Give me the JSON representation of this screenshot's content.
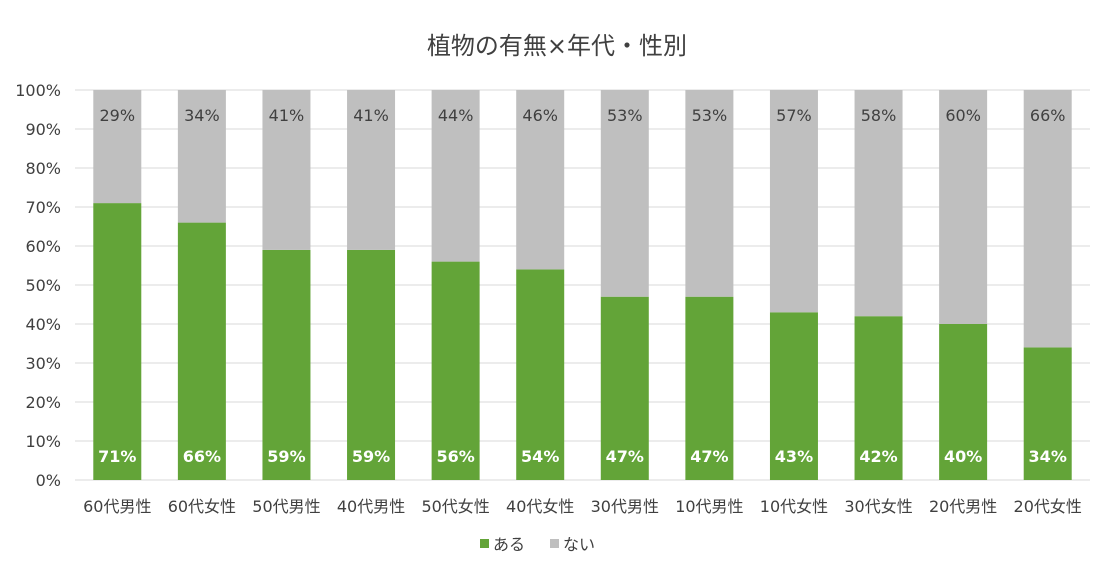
{
  "chart_data": {
    "type": "bar",
    "stacked": true,
    "percent": true,
    "title": "植物の有無×年代・性別",
    "categories": [
      "60代男性",
      "60代女性",
      "50代男性",
      "40代男性",
      "50代女性",
      "40代女性",
      "30代男性",
      "10代男性",
      "10代女性",
      "30代女性",
      "20代男性",
      "20代女性"
    ],
    "series": [
      {
        "name": "ある",
        "color": "#63a438",
        "values": [
          71,
          66,
          59,
          59,
          56,
          54,
          47,
          47,
          43,
          42,
          40,
          34
        ],
        "labels": [
          "71%",
          "66%",
          "59%",
          "59%",
          "56%",
          "54%",
          "47%",
          "47%",
          "43%",
          "42%",
          "40%",
          "34%"
        ]
      },
      {
        "name": "ない",
        "color": "#bfbfbf",
        "values": [
          29,
          34,
          41,
          41,
          44,
          46,
          53,
          53,
          57,
          58,
          60,
          66
        ],
        "labels": [
          "29%",
          "34%",
          "41%",
          "41%",
          "44%",
          "46%",
          "53%",
          "53%",
          "57%",
          "58%",
          "60%",
          "66%"
        ]
      }
    ],
    "ylim": [
      0,
      100
    ],
    "yticks": [
      "0%",
      "10%",
      "20%",
      "30%",
      "40%",
      "50%",
      "60%",
      "70%",
      "80%",
      "90%",
      "100%"
    ],
    "grid": true,
    "legend_position": "bottom"
  }
}
